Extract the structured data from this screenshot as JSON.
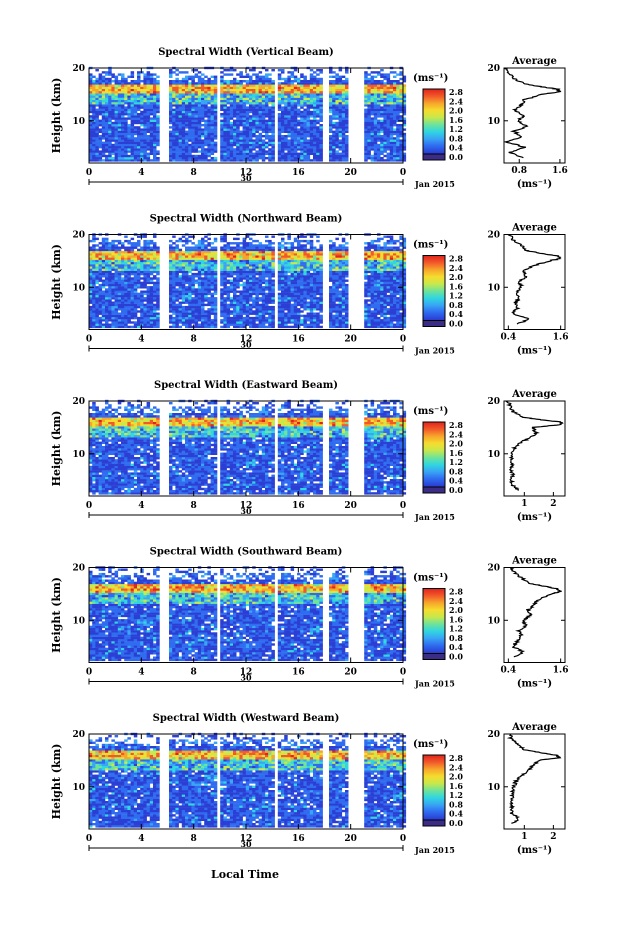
{
  "figure": {
    "x_label": "Local Time",
    "date_label": "Jan 2015",
    "day_label": "30"
  },
  "colors": {
    "colormap": [
      "#3b2d86",
      "#2b3fd4",
      "#2f6cf0",
      "#38a5f5",
      "#30d6e0",
      "#6fe39a",
      "#c8e84b",
      "#f6dc2e",
      "#f7a52b",
      "#f2582a",
      "#e0241e"
    ],
    "background": "#ffffff",
    "axis": "#000000"
  },
  "chart_data": [
    {
      "type": "heatmap",
      "title": "Spectral Width (Vertical Beam)",
      "ylabel": "Height (km)",
      "xlim": [
        0,
        24
      ],
      "ylim": [
        2,
        20
      ],
      "xticks": [
        "0",
        "4",
        "8",
        "12",
        "16",
        "20",
        "0"
      ],
      "yticks": [
        "20",
        "10"
      ],
      "colorbar": {
        "unit": "(ms⁻¹)",
        "ticks": [
          "2.8",
          "2.4",
          "2.0",
          "1.6",
          "1.2",
          "0.8",
          "0.4",
          "0.0"
        ],
        "range": [
          0,
          3.0
        ]
      },
      "gaps_hours": [
        [
          5.3,
          5.9
        ],
        [
          9.6,
          10.0
        ],
        [
          14.0,
          14.4
        ],
        [
          17.7,
          18.1
        ],
        [
          19.8,
          21.0
        ]
      ],
      "high_width_layer_km": [
        15.0,
        16.5
      ],
      "profile": {
        "title": "Average",
        "ylabel": "",
        "xlabel": "(ms⁻¹)",
        "xticks": [
          "0.8",
          "1.6"
        ],
        "xlim": [
          0.5,
          1.7
        ],
        "yticks": [
          "20",
          "10"
        ],
        "height_km": [
          3,
          4,
          5,
          6,
          7,
          8,
          9,
          10,
          11,
          12,
          13,
          14,
          15,
          15.5,
          16,
          16.5,
          17,
          18,
          19,
          20
        ],
        "value": [
          0.9,
          0.6,
          0.9,
          0.55,
          0.85,
          0.7,
          0.95,
          0.75,
          0.9,
          0.7,
          0.85,
          0.9,
          1.25,
          1.6,
          1.55,
          1.2,
          0.9,
          0.7,
          0.6,
          0.55
        ]
      }
    },
    {
      "type": "heatmap",
      "title": "Spectral Width (Northward Beam)",
      "ylabel": "Height (km)",
      "xlim": [
        0,
        24
      ],
      "ylim": [
        2,
        20
      ],
      "xticks": [
        "0",
        "4",
        "8",
        "12",
        "16",
        "20",
        "0"
      ],
      "yticks": [
        "20",
        "10"
      ],
      "colorbar": {
        "unit": "(ms⁻¹)",
        "ticks": [
          "2.8",
          "2.4",
          "2.0",
          "1.6",
          "1.2",
          "0.8",
          "0.4",
          "0.0"
        ],
        "range": [
          0,
          3.0
        ]
      },
      "gaps_hours": [
        [
          5.3,
          5.9
        ],
        [
          9.6,
          10.0
        ],
        [
          14.0,
          14.4
        ],
        [
          17.7,
          18.1
        ],
        [
          19.8,
          20.8
        ]
      ],
      "high_width_layer_km": [
        15.0,
        16.5
      ],
      "profile": {
        "title": "Average",
        "ylabel": "",
        "xlabel": "(ms⁻¹)",
        "xticks": [
          "0.4",
          "1.6"
        ],
        "xlim": [
          0.3,
          1.7
        ],
        "yticks": [
          "20",
          "10"
        ],
        "height_km": [
          3,
          4,
          5,
          6,
          7,
          8,
          9,
          10,
          11,
          12,
          13,
          14,
          15,
          15.5,
          16,
          16.5,
          17,
          18,
          19,
          20
        ],
        "value": [
          0.6,
          0.9,
          0.5,
          0.6,
          0.55,
          0.65,
          0.6,
          0.7,
          0.65,
          0.8,
          0.75,
          0.95,
          1.35,
          1.6,
          1.5,
          1.1,
          0.8,
          0.7,
          0.5,
          0.45
        ]
      }
    },
    {
      "type": "heatmap",
      "title": "Spectral Width (Eastward Beam)",
      "ylabel": "Height (km)",
      "xlim": [
        0,
        24
      ],
      "ylim": [
        2,
        20
      ],
      "xticks": [
        "0",
        "4",
        "8",
        "12",
        "16",
        "20",
        "0"
      ],
      "yticks": [
        "20",
        "10"
      ],
      "colorbar": {
        "unit": "(ms⁻¹)",
        "ticks": [
          "2.8",
          "2.4",
          "2.0",
          "1.6",
          "1.2",
          "0.8",
          "0.4",
          "0.0"
        ],
        "range": [
          0,
          3.0
        ]
      },
      "gaps_hours": [
        [
          5.3,
          5.9
        ],
        [
          9.6,
          10.0
        ],
        [
          14.0,
          14.4
        ],
        [
          17.7,
          18.1
        ],
        [
          19.8,
          20.8
        ]
      ],
      "high_width_layer_km": [
        15.0,
        16.5
      ],
      "profile": {
        "title": "Average",
        "ylabel": "",
        "xlabel": "(ms⁻¹)",
        "xticks": [
          "1",
          "2"
        ],
        "xlim": [
          0.3,
          2.4
        ],
        "yticks": [
          "20",
          "10"
        ],
        "height_km": [
          3,
          4,
          5,
          6,
          7,
          8,
          9,
          10,
          11,
          12,
          13,
          14,
          15,
          15.5,
          16,
          16.5,
          17,
          18,
          19,
          20
        ],
        "value": [
          0.8,
          0.6,
          0.55,
          0.6,
          0.55,
          0.6,
          0.55,
          0.6,
          0.65,
          0.8,
          1.2,
          1.4,
          1.3,
          2.2,
          2.3,
          1.5,
          0.9,
          0.6,
          0.5,
          0.45
        ]
      }
    },
    {
      "type": "heatmap",
      "title": "Spectral Width (Southward Beam)",
      "ylabel": "Height (km)",
      "xlim": [
        0,
        24
      ],
      "ylim": [
        2,
        20
      ],
      "xticks": [
        "0",
        "4",
        "8",
        "12",
        "16",
        "20",
        "0"
      ],
      "yticks": [
        "20",
        "10"
      ],
      "colorbar": {
        "unit": "(ms⁻¹)",
        "ticks": [
          "2.8",
          "2.4",
          "2.0",
          "1.6",
          "1.2",
          "0.8",
          "0.4",
          "0.0"
        ],
        "range": [
          0,
          3.0
        ]
      },
      "gaps_hours": [
        [
          5.3,
          5.9
        ],
        [
          9.6,
          10.0
        ],
        [
          14.0,
          14.4
        ],
        [
          17.7,
          18.1
        ],
        [
          19.8,
          20.8
        ]
      ],
      "high_width_layer_km": [
        15.0,
        16.5
      ],
      "profile": {
        "title": "Average",
        "ylabel": "",
        "xlabel": "(ms⁻¹)",
        "xticks": [
          "0.4",
          "1.6"
        ],
        "xlim": [
          0.3,
          1.7
        ],
        "yticks": [
          "20",
          "10"
        ],
        "height_km": [
          3,
          4,
          5,
          6,
          7,
          8,
          9,
          10,
          11,
          12,
          13,
          14,
          15,
          15.5,
          16,
          16.5,
          17,
          18,
          19,
          20
        ],
        "value": [
          0.5,
          0.75,
          0.5,
          0.6,
          0.7,
          0.65,
          0.8,
          0.75,
          0.9,
          0.85,
          1.0,
          1.1,
          1.4,
          1.6,
          1.5,
          1.2,
          0.9,
          0.7,
          0.55,
          0.45
        ]
      }
    },
    {
      "type": "heatmap",
      "title": "Spectral Width (Westward Beam)",
      "ylabel": "Height (km)",
      "xlim": [
        0,
        24
      ],
      "ylim": [
        2,
        20
      ],
      "xticks": [
        "0",
        "4",
        "8",
        "12",
        "16",
        "20",
        "0"
      ],
      "yticks": [
        "20",
        "10"
      ],
      "colorbar": {
        "unit": "(ms⁻¹)",
        "ticks": [
          "2.8",
          "2.4",
          "2.0",
          "1.6",
          "1.2",
          "0.8",
          "0.4",
          "0.0"
        ],
        "range": [
          0,
          3.0
        ]
      },
      "gaps_hours": [
        [
          5.3,
          5.9
        ],
        [
          9.6,
          10.0
        ],
        [
          14.0,
          14.4
        ],
        [
          17.7,
          18.1
        ],
        [
          19.8,
          20.8
        ]
      ],
      "high_width_layer_km": [
        15.0,
        16.5
      ],
      "profile": {
        "title": "Average",
        "ylabel": "",
        "xlabel": "(ms⁻¹)",
        "xticks": [
          "1",
          "2"
        ],
        "xlim": [
          0.3,
          2.4
        ],
        "yticks": [
          "20",
          "10"
        ],
        "height_km": [
          3,
          4,
          5,
          6,
          7,
          8,
          9,
          10,
          11,
          12,
          13,
          14,
          15,
          15.5,
          16,
          16.5,
          17,
          18,
          19,
          20
        ],
        "value": [
          0.6,
          0.8,
          0.55,
          0.6,
          0.55,
          0.6,
          0.6,
          0.65,
          0.7,
          0.9,
          1.1,
          1.3,
          1.5,
          2.2,
          2.1,
          1.5,
          1.0,
          0.8,
          0.55,
          0.5
        ]
      }
    }
  ]
}
